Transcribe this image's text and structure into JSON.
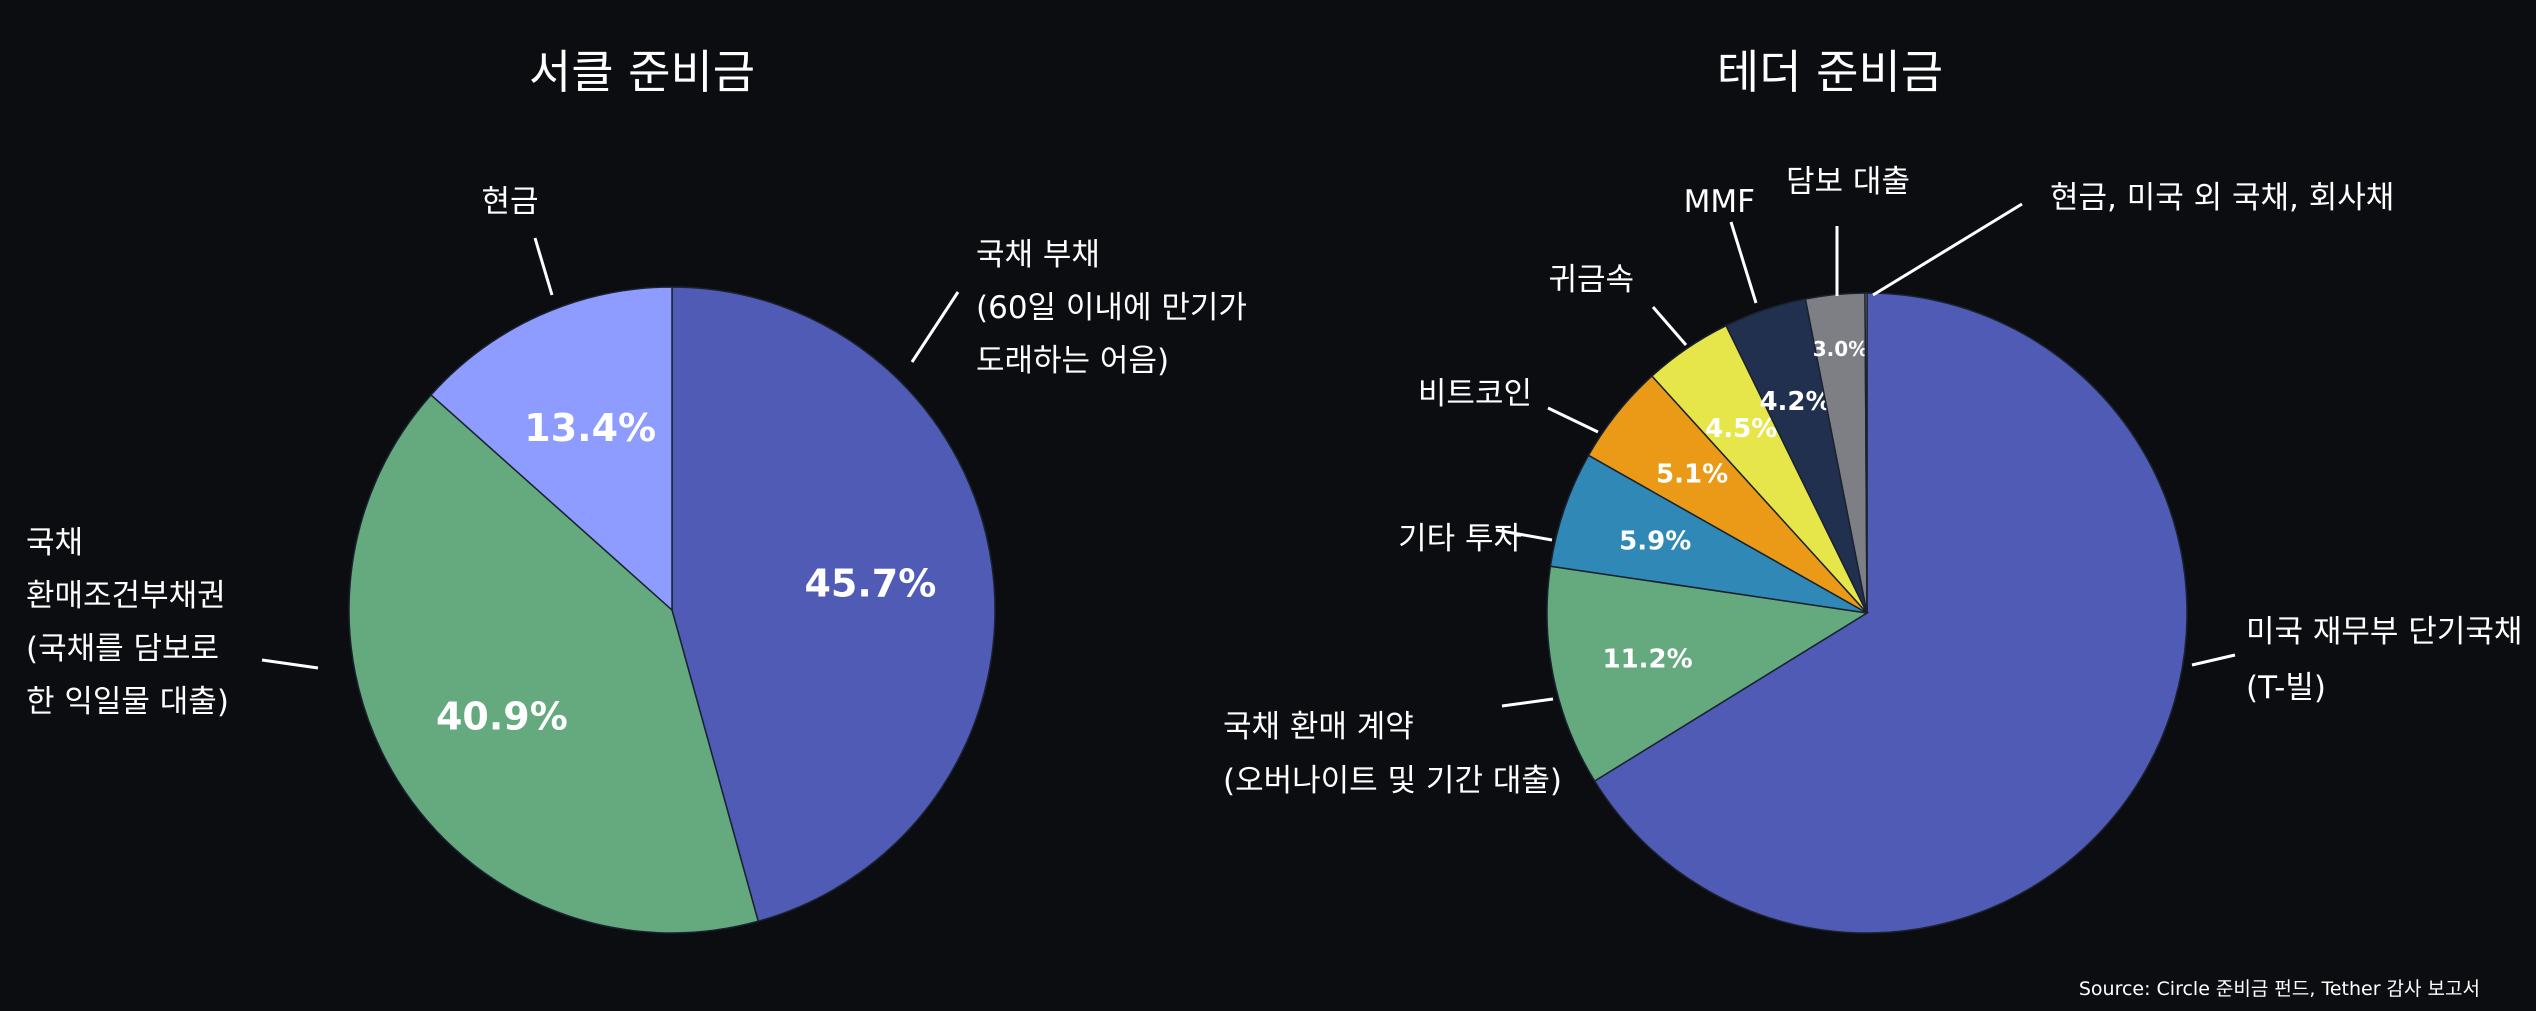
{
  "source_note": "Source: Circle 준비금 펀드, Tether 감사 보고서",
  "chart_data": [
    {
      "type": "pie",
      "title": "서클 준비금",
      "start_angle_deg": 90,
      "direction": "clockwise",
      "slices": [
        {
          "label_lines": [
            "국채 부채",
            "(60일 이내에 만기가",
            "도래하는 어음)"
          ],
          "value": 45.7,
          "display": "45.7%",
          "color": "#4f5bb5"
        },
        {
          "label_lines": [
            "국채",
            "환매조건부채권",
            "(국채를 담보로",
            "한 익일물 대출)"
          ],
          "value": 40.9,
          "display": "40.9%",
          "color": "#65a97f"
        },
        {
          "label_lines": [
            "현금"
          ],
          "value": 13.4,
          "display": "13.4%",
          "color": "#8f9cff"
        }
      ]
    },
    {
      "type": "pie",
      "title": "테더 준비금",
      "start_angle_deg": 90,
      "direction": "clockwise",
      "slices": [
        {
          "label_lines": [
            "미국 재무부 단기국채",
            "(T-빌)"
          ],
          "value": 66.6,
          "display": "",
          "color": "#4f5bb5"
        },
        {
          "label_lines": [
            "국채 환매 계약",
            "(오버나이트 및 기간 대출)"
          ],
          "value": 11.2,
          "display": "11.2%",
          "color": "#65a97f"
        },
        {
          "label_lines": [
            "기타 투자"
          ],
          "value": 5.9,
          "display": "5.9%",
          "color": "#2f88b5"
        },
        {
          "label_lines": [
            "비트코인"
          ],
          "value": 5.1,
          "display": "5.1%",
          "color": "#ea9a17"
        },
        {
          "label_lines": [
            "귀금속"
          ],
          "value": 4.5,
          "display": "4.5%",
          "color": "#e6e64a"
        },
        {
          "label_lines": [
            "MMF"
          ],
          "value": 4.2,
          "display": "4.2%",
          "color": "#22304f"
        },
        {
          "label_lines": [
            "담보 대출"
          ],
          "value": 3.0,
          "display": "3.0%",
          "color": "#7d7f85"
        },
        {
          "label_lines": [
            "현금, 미국 외 국채, 회사채"
          ],
          "value": 0.1,
          "display": "",
          "color": "#a0a4aa"
        }
      ]
    }
  ]
}
